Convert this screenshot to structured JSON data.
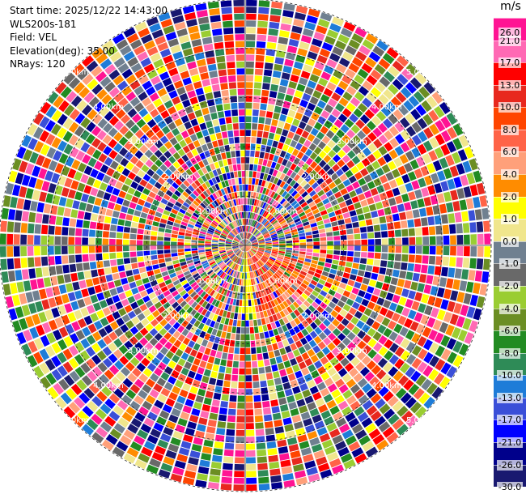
{
  "chart_data": {
    "type": "heatmap",
    "subtype": "polar-ppi",
    "info": {
      "start_time": "Start time: 2025/12/22 14:43:00",
      "instrument": "WLS200s-181",
      "field": "Field: VEL",
      "elevation": "Elevation(deg): 35.00",
      "nrays": "NRays: 120"
    },
    "rays": 120,
    "max_range_km": 5.0,
    "range_rings_km": [
      1.0,
      2.0,
      3.0,
      4.0,
      5.0
    ],
    "ring_labels": [
      "1.00km",
      "2.00km",
      "3.00km",
      "4.00km",
      "5.00km"
    ],
    "colorbar": {
      "unit": "m/s",
      "ticks": [
        "26.0",
        "21.0",
        "17.0",
        "13.0",
        "10.0",
        "8.0",
        "6.0",
        "4.0",
        "2.0",
        "1.0",
        "0.0",
        "-1.0",
        "-2.0",
        "-4.0",
        "-6.0",
        "-8.0",
        "-10.0",
        "-13.0",
        "-17.0",
        "-21.0",
        "-26.0",
        "-30.0"
      ],
      "colors": [
        "#ff1493",
        "#ff69b4",
        "#ff0000",
        "#e8281e",
        "#ff4500",
        "#ff6347",
        "#ffa07a",
        "#ff8c00",
        "#ffff00",
        "#f0e68c",
        "#708090",
        "#696969",
        "#9acd32",
        "#6b8e23",
        "#228b22",
        "#2e8b57",
        "#1e7cd8",
        "#3a4fd8",
        "#0000ff",
        "#00008b",
        "#191970"
      ],
      "range": [
        -30.0,
        30.0
      ]
    }
  }
}
